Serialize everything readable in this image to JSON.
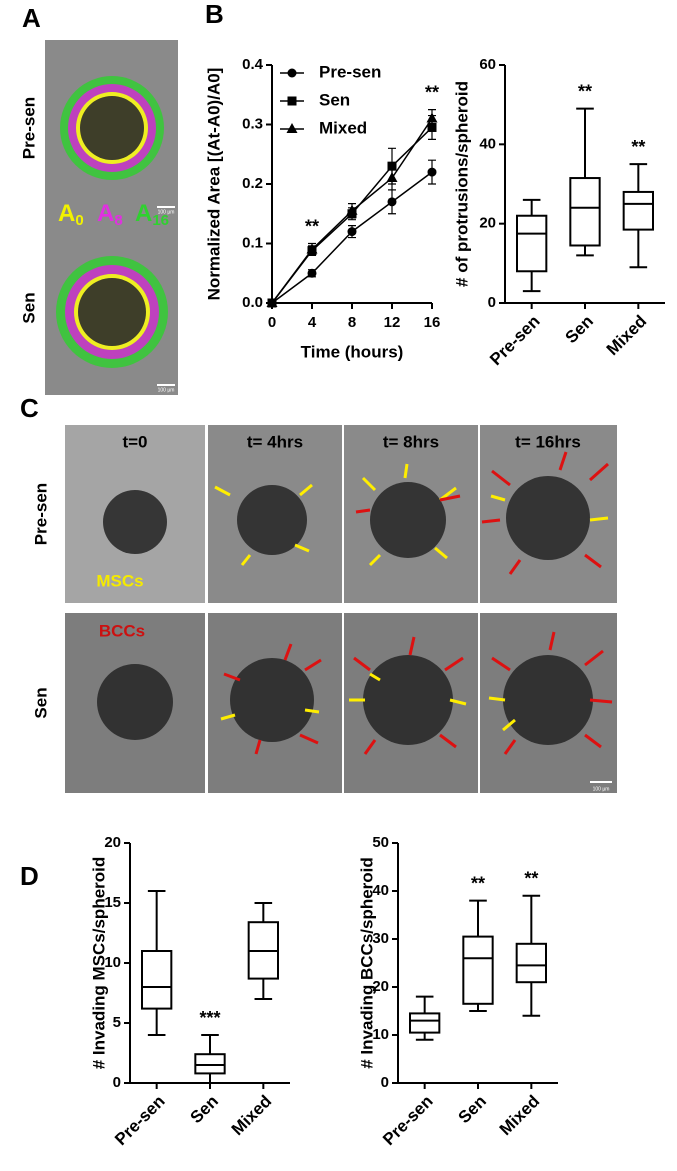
{
  "figure": {
    "panel_labels": [
      "A",
      "B",
      "C",
      "D"
    ],
    "panel_a": {
      "row_labels": [
        "Pre-sen",
        "Sen"
      ],
      "legend": [
        {
          "base": "A",
          "sub": "0"
        },
        {
          "base": "A",
          "sub": "8"
        },
        {
          "base": "A",
          "sub": "16"
        }
      ],
      "scale_bars": [
        "100 µm",
        "100 µm"
      ]
    },
    "panel_c": {
      "row_labels": [
        "Pre-sen",
        "Sen"
      ],
      "column_labels": [
        "t=0",
        "t= 4hrs",
        "t= 8hrs",
        "t= 16hrs"
      ],
      "cell_labels": [
        "MSCs",
        "BCCs"
      ],
      "scale_bar": "100 µm"
    }
  },
  "chart_data": [
    {
      "type": "line",
      "xlabel": "Time (hours)",
      "ylabel": "Normalized Area [(At-A0)/A0]",
      "x": [
        0,
        4,
        8,
        12,
        16
      ],
      "xlim": [
        0,
        16
      ],
      "xticks": [
        0,
        4,
        8,
        12,
        16
      ],
      "ylim": [
        0,
        0.4
      ],
      "yticks": [
        {
          "value": 0,
          "label": "0.0"
        },
        0.1,
        0.2,
        0.3,
        0.4
      ],
      "series": [
        {
          "name": "Pre-sen",
          "color": "#000000",
          "marker": "circle",
          "values": [
            0,
            0.05,
            0.12,
            0.17,
            0.22
          ],
          "errors": [
            0,
            0.006,
            0.01,
            0.02,
            0.02
          ]
        },
        {
          "name": "Sen",
          "color": "#000000",
          "marker": "square",
          "values": [
            0,
            0.088,
            0.15,
            0.23,
            0.295
          ],
          "errors": [
            0,
            0.008,
            0.01,
            0.03,
            0.02
          ]
        },
        {
          "name": "Mixed",
          "color": "#000000",
          "marker": "triangle",
          "values": [
            0,
            0.09,
            0.155,
            0.21,
            0.31
          ],
          "errors": [
            0,
            0.01,
            0.012,
            0.02,
            0.015
          ]
        }
      ],
      "annotations": [
        null,
        "**",
        null,
        null,
        "**"
      ],
      "legend": "upper left"
    },
    {
      "type": "box",
      "ylabel": "# of protrusions/spheroid",
      "categories": [
        "Pre-sen",
        "Sen",
        "Mixed"
      ],
      "values": [
        [
          3,
          8,
          17.5,
          22,
          26
        ],
        [
          12,
          14.5,
          24,
          31.5,
          49
        ],
        [
          9,
          18.5,
          25,
          28,
          35
        ]
      ],
      "ylim": [
        0,
        60
      ],
      "yticks": [
        0,
        20,
        40,
        60
      ],
      "annotations": [
        null,
        "**",
        "**"
      ],
      "color": "#000000"
    },
    {
      "type": "box",
      "ylabel": "# Invading MSCs/spheroid",
      "categories": [
        "Pre-sen",
        "Sen",
        "Mixed"
      ],
      "values": [
        [
          4,
          6.2,
          8,
          11,
          16
        ],
        [
          0,
          0.8,
          1.5,
          2.4,
          4
        ],
        [
          7,
          8.7,
          11,
          13.4,
          15
        ]
      ],
      "ylim": [
        0,
        20
      ],
      "yticks": [
        0,
        5,
        10,
        15,
        20
      ],
      "annotations": [
        null,
        "***",
        null
      ],
      "color": "#000000"
    },
    {
      "type": "box",
      "ylabel": "# Invading BCCs/spheroid",
      "categories": [
        "Pre-sen",
        "Sen",
        "Mixed"
      ],
      "values": [
        [
          9,
          10.5,
          13,
          14.5,
          18
        ],
        [
          15,
          16.5,
          26,
          30.5,
          38
        ],
        [
          14,
          21,
          24.5,
          29,
          39
        ]
      ],
      "ylim": [
        0,
        50
      ],
      "yticks": [
        0,
        10,
        20,
        30,
        40,
        50
      ],
      "annotations": [
        null,
        "**",
        "**"
      ],
      "color": "#000000"
    }
  ]
}
